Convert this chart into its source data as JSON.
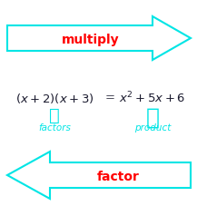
{
  "bg_color": "#ffffff",
  "arrow_color": "#00e5e5",
  "text_color_red": "#ff0000",
  "text_color_dark": "#1a1a2e",
  "label_color": "#00e5e5",
  "multiply_text": "multiply",
  "factor_text": "factor",
  "label_left": "factors",
  "label_right": "product",
  "fig_width": 2.17,
  "fig_height": 2.27,
  "dpi": 100
}
